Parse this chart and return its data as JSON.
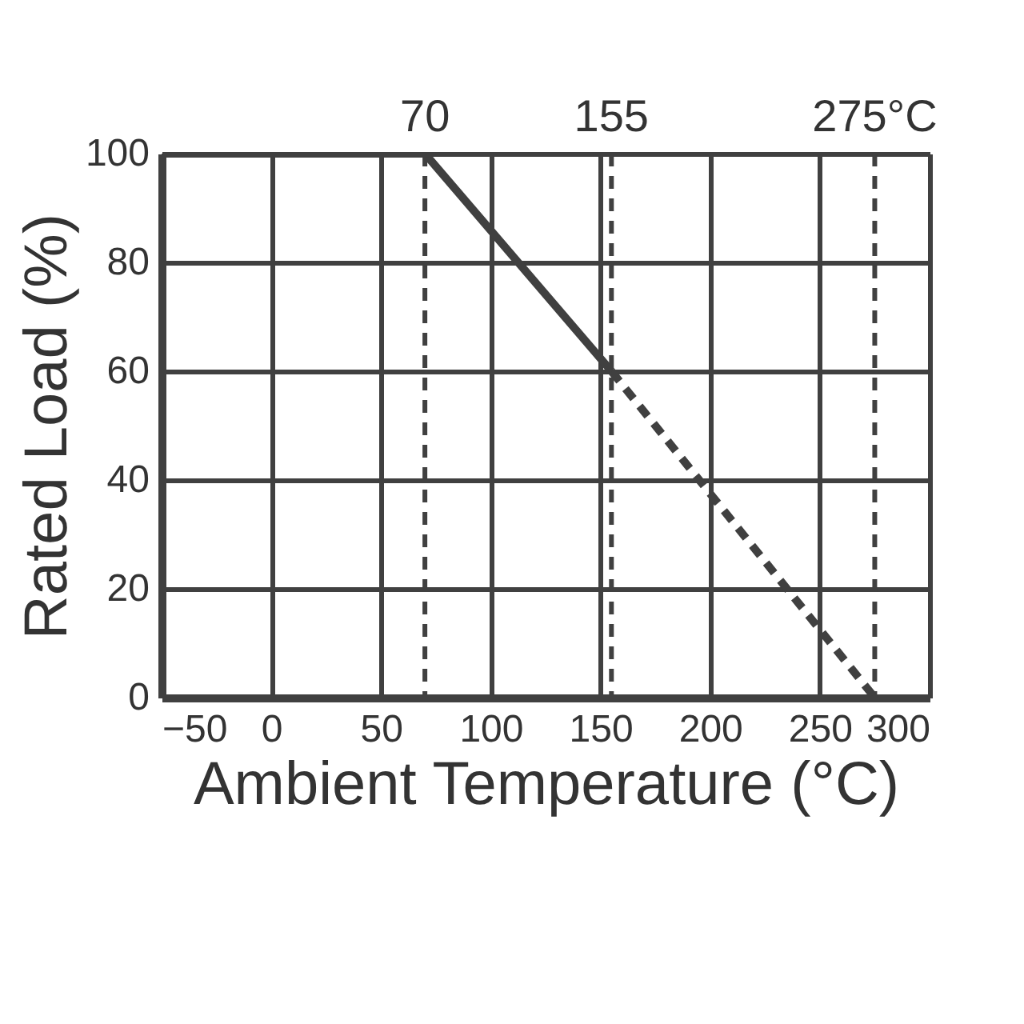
{
  "chart_data": {
    "type": "line",
    "xlabel": "Ambient Temperature (°C)",
    "ylabel": "Rated Load (%)",
    "series": [
      {
        "x": [
          -50,
          70,
          155
        ],
        "values": [
          100,
          100,
          60
        ],
        "color": "#404040",
        "line_style": "solid"
      },
      {
        "x": [
          155,
          275
        ],
        "values": [
          60,
          0
        ],
        "color": "#404040",
        "line_style": "dashed"
      }
    ],
    "xlim": [
      -50,
      300
    ],
    "xticks": [
      -50,
      0,
      50,
      100,
      150,
      200,
      250,
      300
    ],
    "ylim": [
      0,
      100
    ],
    "yticks": [
      0,
      20,
      40,
      60,
      80,
      100
    ],
    "ref_lines": [
      {
        "axis": "x",
        "value": 70,
        "label": "70",
        "line_style": "dashed",
        "color": "#404040"
      },
      {
        "axis": "x",
        "value": 155,
        "label": "155",
        "line_style": "dashed",
        "color": "#404040"
      },
      {
        "axis": "x",
        "value": 275,
        "label": "275°C",
        "line_style": "dashed",
        "color": "#404040"
      }
    ],
    "grid": true,
    "marker": "none"
  }
}
